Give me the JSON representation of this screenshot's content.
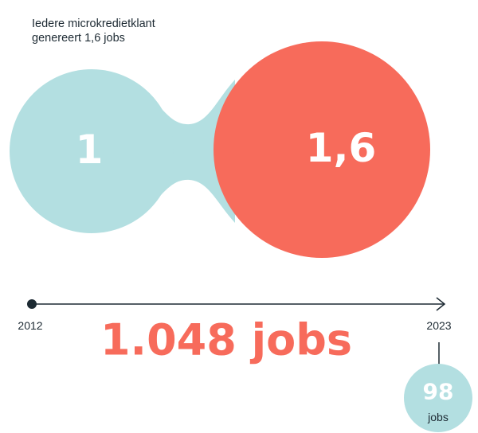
{
  "caption": [
    "Iedere microkredietklant",
    "genereert 1,6 jobs"
  ],
  "bubbles": {
    "start": "1",
    "end": "1,6"
  },
  "timeline": {
    "start": "2012",
    "end": "2023"
  },
  "total": "1.048 jobs",
  "callout": {
    "value": "98",
    "unit": "jobs"
  }
}
